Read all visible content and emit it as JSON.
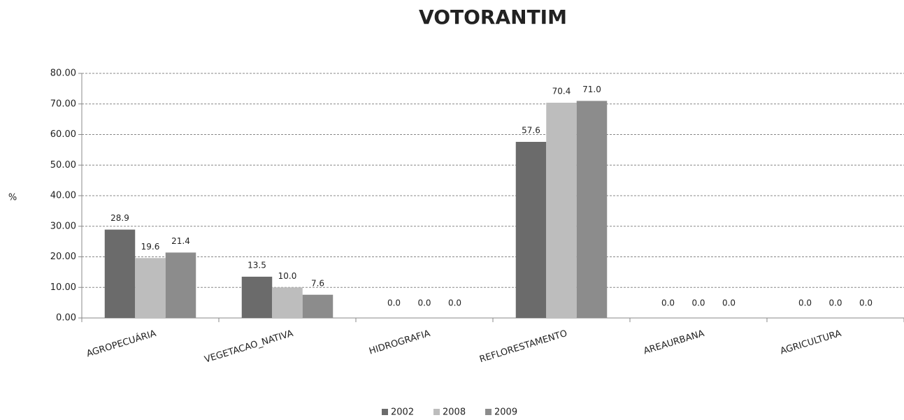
{
  "chart_data": {
    "type": "bar",
    "title": "VOTORANTIM",
    "y_label": "%",
    "categories": [
      "AGROPECUÁRIA",
      "VEGETACAO_NATIVA",
      "HIDROGRAFIA",
      "REFLORESTAMENTO",
      "AREAURBANA",
      "AGRICULTURA"
    ],
    "series": [
      {
        "name": "2002",
        "color": "#6b6b6b",
        "values": [
          28.9,
          13.5,
          0,
          57.6,
          0,
          0
        ],
        "value_labels": [
          "28.9",
          "13.5",
          "0.0",
          "57.6",
          "0.0",
          "0.0"
        ]
      },
      {
        "name": "2008",
        "color": "#bdbdbd",
        "values": [
          19.6,
          10.0,
          0,
          70.4,
          0,
          0
        ],
        "value_labels": [
          "19.6",
          "10.0",
          "0.0",
          "70.4",
          "0.0",
          "0.0"
        ]
      },
      {
        "name": "2009",
        "color": "#8c8c8c",
        "values": [
          21.4,
          7.6,
          0,
          71.0,
          0,
          0
        ],
        "value_labels": [
          "21.4",
          "7.6",
          "0.0",
          "71.0",
          "0.0",
          "0.0"
        ]
      }
    ],
    "ylim": [
      0,
      80
    ],
    "yticks": [
      {
        "value": 0,
        "label": "0.00"
      },
      {
        "value": 10,
        "label": "10.00"
      },
      {
        "value": 20,
        "label": "20.00"
      },
      {
        "value": 30,
        "label": "30.00"
      },
      {
        "value": 40,
        "label": "40.00"
      },
      {
        "value": 50,
        "label": "50.00"
      },
      {
        "value": 60,
        "label": "60.00"
      },
      {
        "value": 70,
        "label": "70.00"
      },
      {
        "value": 80,
        "label": "80.00"
      }
    ],
    "grid": true,
    "legend": "bottom"
  }
}
